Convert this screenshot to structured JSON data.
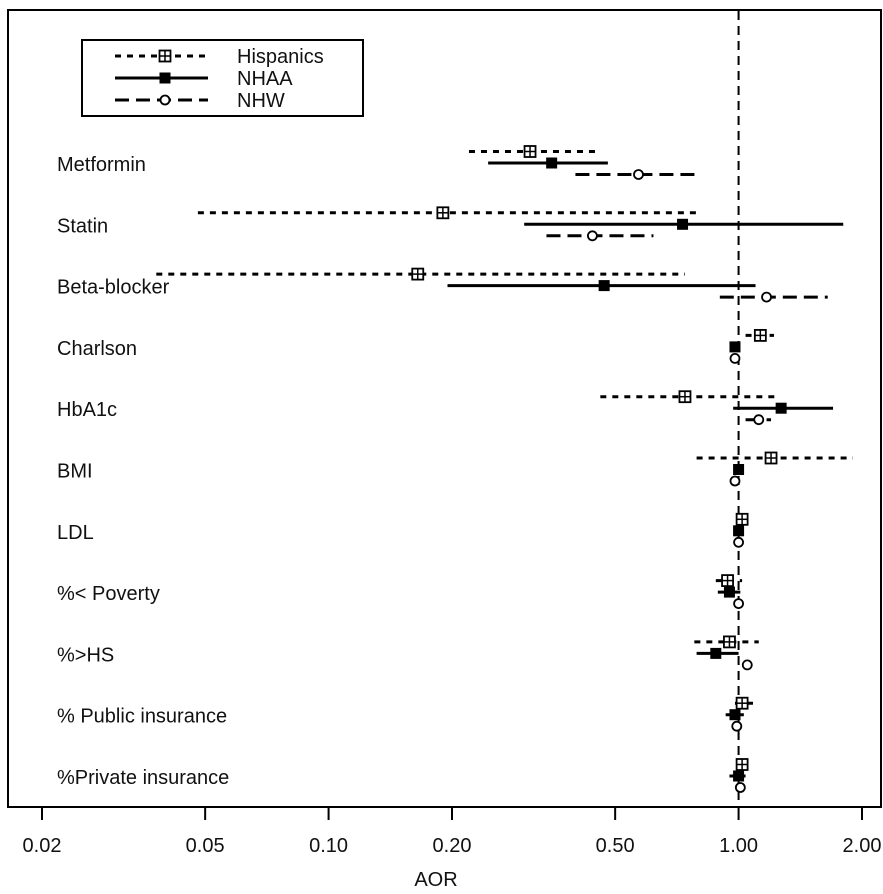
{
  "chart_data": {
    "type": "forest",
    "xlabel": "AOR",
    "x_scale": "log",
    "xlim": [
      0.02,
      2.0
    ],
    "x_ticks": [
      0.02,
      0.05,
      0.1,
      0.2,
      0.5,
      1.0,
      2.0
    ],
    "x_tick_labels": [
      "0.02",
      "0.05",
      "0.10",
      "0.20",
      "0.50",
      "1.00",
      "2.00"
    ],
    "reference_line": 1.0,
    "legend_position": "top-left",
    "categories": [
      "Metformin",
      "Statin",
      "Beta-blocker",
      "Charlson",
      "HbA1c",
      "BMI",
      "LDL",
      "%< Poverty",
      "%>HS",
      "% Public insurance",
      "%Private insurance"
    ],
    "series": [
      {
        "name": "Hispanics",
        "line_style": "dotted",
        "marker": "boxed-plus",
        "estimates": [
          0.31,
          0.19,
          0.165,
          1.13,
          0.74,
          1.2,
          1.02,
          0.94,
          0.95,
          1.02,
          1.02
        ],
        "lower": [
          0.22,
          0.048,
          0.038,
          1.04,
          0.46,
          0.79,
          1.01,
          0.88,
          0.78,
          0.98,
          1.0
        ],
        "upper": [
          0.45,
          0.8,
          0.74,
          1.22,
          1.25,
          1.9,
          1.03,
          1.02,
          1.12,
          1.1,
          1.06
        ]
      },
      {
        "name": "NHAA",
        "line_style": "solid",
        "marker": "filled-square",
        "estimates": [
          0.35,
          0.73,
          0.47,
          0.98,
          1.27,
          1.0,
          1.0,
          0.95,
          0.88,
          0.98,
          1.0
        ],
        "lower": [
          0.245,
          0.3,
          0.195,
          0.96,
          0.97,
          1.0,
          1.0,
          0.89,
          0.79,
          0.93,
          0.95
        ],
        "upper": [
          0.48,
          1.8,
          1.1,
          1.01,
          1.7,
          1.01,
          1.01,
          1.01,
          1.0,
          1.03,
          1.04
        ]
      },
      {
        "name": "NHW",
        "line_style": "dashed",
        "marker": "open-circle",
        "estimates": [
          0.57,
          0.44,
          1.17,
          0.98,
          1.12,
          0.98,
          1.0,
          1.0,
          1.05,
          0.99,
          1.01
        ],
        "lower": [
          0.4,
          0.34,
          0.9,
          0.97,
          1.04,
          0.98,
          1.0,
          1.0,
          1.05,
          0.99,
          1.0
        ],
        "upper": [
          0.79,
          0.62,
          1.65,
          0.99,
          1.2,
          0.99,
          1.0,
          1.01,
          1.06,
          1.0,
          1.02
        ]
      }
    ]
  }
}
